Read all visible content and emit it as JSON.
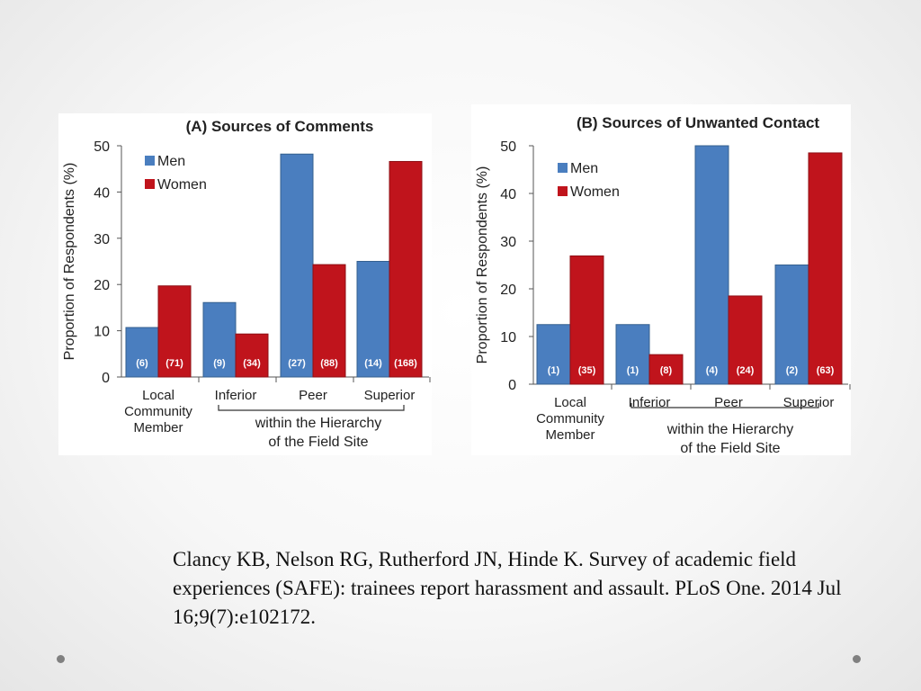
{
  "colors": {
    "men": "#4a7ebf",
    "women": "#c0141c",
    "men_edge": "#35608f",
    "women_edge": "#8e0f14",
    "axis": "#555555",
    "text": "#222222"
  },
  "chart_data": [
    {
      "type": "bar",
      "title": "(A) Sources of Comments",
      "ylabel": "Proportion of Respondents (%)",
      "ylim": [
        0,
        50
      ],
      "yticks": [
        "0",
        "10",
        "20",
        "30",
        "40",
        "50"
      ],
      "categories": [
        [
          "Local",
          "Community",
          "Member"
        ],
        [
          "Inferior"
        ],
        [
          "Peer"
        ],
        [
          "Superior"
        ]
      ],
      "bracket_label": [
        "within the Hierarchy",
        "of the Field Site"
      ],
      "legend": "top-left",
      "series": [
        {
          "name": "Men",
          "values": [
            10.7,
            16.1,
            48.2,
            25.0
          ],
          "n_labels": [
            "(6)",
            "(9)",
            "(27)",
            "(14)"
          ]
        },
        {
          "name": "Women",
          "values": [
            19.7,
            9.3,
            24.3,
            46.6
          ],
          "n_labels": [
            "(71)",
            "(34)",
            "(88)",
            "(168)"
          ]
        }
      ]
    },
    {
      "type": "bar",
      "title": "(B) Sources of Unwanted Contact",
      "ylabel": "Proportion of Respondents (%)",
      "ylim": [
        0,
        50
      ],
      "yticks": [
        "0",
        "10",
        "20",
        "30",
        "40",
        "50"
      ],
      "categories": [
        [
          "Local",
          "Community",
          "Member"
        ],
        [
          "Inferior"
        ],
        [
          "Peer"
        ],
        [
          "Superior"
        ]
      ],
      "bracket_label": [
        "within the Hierarchy",
        "of the Field Site"
      ],
      "legend": "top-left",
      "series": [
        {
          "name": "Men",
          "values": [
            12.5,
            12.5,
            50.0,
            25.0
          ],
          "n_labels": [
            "(1)",
            "(1)",
            "(4)",
            "(2)"
          ]
        },
        {
          "name": "Women",
          "values": [
            26.9,
            6.2,
            18.5,
            48.5
          ],
          "n_labels": [
            "(35)",
            "(8)",
            "(24)",
            "(63)"
          ]
        }
      ]
    }
  ],
  "citation": "Clancy KB, Nelson RG, Rutherford JN, Hinde K. Survey of academic field experiences (SAFE): trainees report harassment and assault. PLoS One. 2014 Jul 16;9(7):e102172."
}
